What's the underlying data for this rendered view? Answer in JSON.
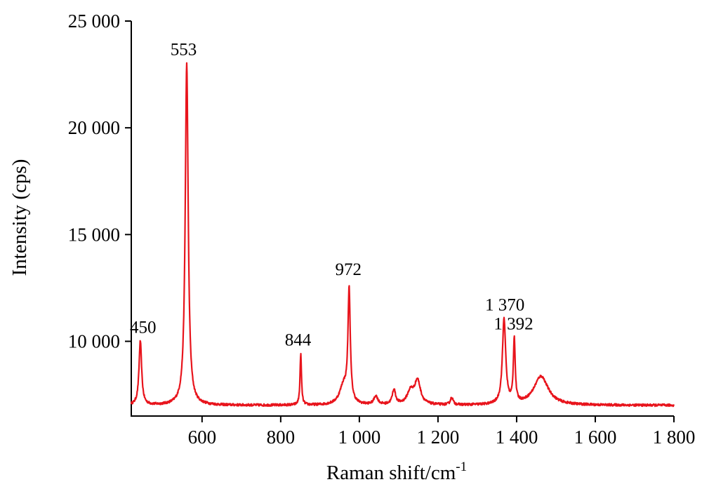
{
  "chart_data": {
    "type": "line",
    "title": "",
    "xlabel": "Raman shift/cm",
    "xlabel_superscript": "-1",
    "ylabel": "Intensity (cps)",
    "xlim": [
      420,
      1800
    ],
    "ylim": [
      6500,
      25000
    ],
    "grid": false,
    "legend": "none",
    "x_ticks": [
      {
        "value": 600,
        "label": "600"
      },
      {
        "value": 800,
        "label": "800"
      },
      {
        "value": 1000,
        "label": "1 000"
      },
      {
        "value": 1200,
        "label": "1 200"
      },
      {
        "value": 1400,
        "label": "1 400"
      },
      {
        "value": 1600,
        "label": "1 600"
      },
      {
        "value": 1800,
        "label": "1 800"
      }
    ],
    "y_ticks": [
      {
        "value": 10000,
        "label": "10 000"
      },
      {
        "value": 15000,
        "label": "15 000"
      },
      {
        "value": 20000,
        "label": "20 000"
      },
      {
        "value": 25000,
        "label": "25 000"
      }
    ],
    "series": [
      {
        "color": "#e8141c",
        "baseline": 7000,
        "x_start": 420,
        "x_end": 1800,
        "peaks": [
          {
            "x": 443,
            "height": 3000,
            "width": 4
          },
          {
            "x": 561,
            "height": 16000,
            "width": 4.5
          },
          {
            "x": 851,
            "height": 2400,
            "width": 2.2
          },
          {
            "x": 974,
            "height": 5200,
            "width": 3.5
          },
          {
            "x": 960,
            "height": 900,
            "width": 12
          },
          {
            "x": 1042,
            "height": 400,
            "width": 6
          },
          {
            "x": 1088,
            "height": 700,
            "width": 5
          },
          {
            "x": 1130,
            "height": 600,
            "width": 10
          },
          {
            "x": 1148,
            "height": 1100,
            "width": 9
          },
          {
            "x": 1235,
            "height": 350,
            "width": 4
          },
          {
            "x": 1368,
            "height": 4000,
            "width": 5
          },
          {
            "x": 1394,
            "height": 3000,
            "width": 2.8
          },
          {
            "x": 1462,
            "height": 1350,
            "width": 22
          }
        ]
      }
    ],
    "annotations": [
      {
        "text": "450",
        "x": 450,
        "y": 10400
      },
      {
        "text": "553",
        "x": 553,
        "y": 23400
      },
      {
        "text": "844",
        "x": 844,
        "y": 9800
      },
      {
        "text": "972",
        "x": 972,
        "y": 13100
      },
      {
        "text": "1 370",
        "x": 1370,
        "y": 11450
      },
      {
        "text": "1 392",
        "x": 1392,
        "y": 10550
      }
    ]
  }
}
